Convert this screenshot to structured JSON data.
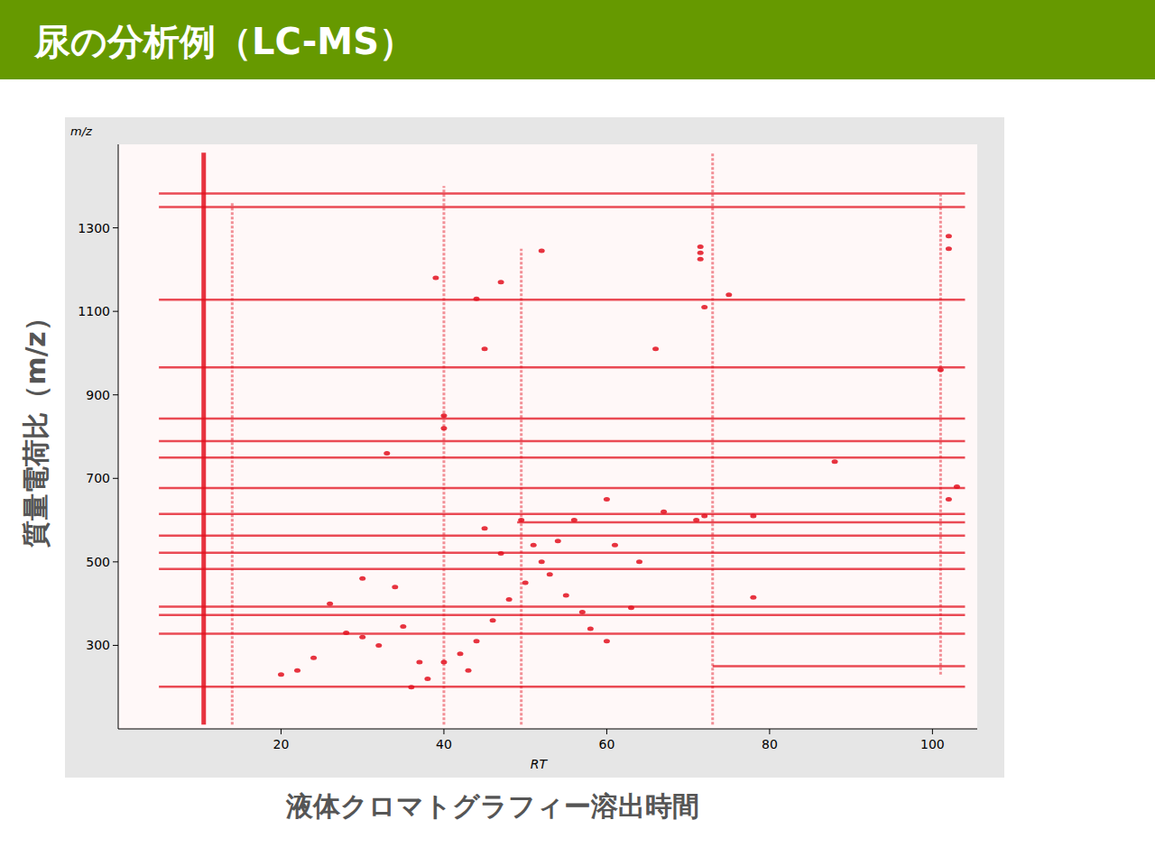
{
  "chart_data": {
    "type": "scatter",
    "title": "尿の分析例（LC-MS）",
    "x_label": "RT",
    "y_label": "m/z",
    "x_caption": "液体クロマトグラフィー溶出時間",
    "y_caption": "質量電荷比（m/z）",
    "color": "#e3101e",
    "xlim": [
      0,
      105.5
    ],
    "ylim": [
      100,
      1500
    ],
    "xticks": [
      20,
      40,
      60,
      80,
      100
    ],
    "yticks": [
      300,
      500,
      700,
      900,
      1100,
      1300
    ],
    "horizontal_traces": [
      {
        "mz": 1382,
        "rt_start": 5,
        "rt_end": 104
      },
      {
        "mz": 1350,
        "rt_start": 5,
        "rt_end": 104
      },
      {
        "mz": 1128,
        "rt_start": 5,
        "rt_end": 104
      },
      {
        "mz": 966,
        "rt_start": 5,
        "rt_end": 104
      },
      {
        "mz": 843,
        "rt_start": 5,
        "rt_end": 104
      },
      {
        "mz": 789,
        "rt_start": 5,
        "rt_end": 104
      },
      {
        "mz": 750,
        "rt_start": 5,
        "rt_end": 104
      },
      {
        "mz": 677,
        "rt_start": 5,
        "rt_end": 104
      },
      {
        "mz": 615,
        "rt_start": 5,
        "rt_end": 104
      },
      {
        "mz": 595,
        "rt_start": 49,
        "rt_end": 104
      },
      {
        "mz": 563,
        "rt_start": 5,
        "rt_end": 104
      },
      {
        "mz": 522,
        "rt_start": 5,
        "rt_end": 104
      },
      {
        "mz": 483,
        "rt_start": 5,
        "rt_end": 104
      },
      {
        "mz": 393,
        "rt_start": 5,
        "rt_end": 104
      },
      {
        "mz": 373,
        "rt_start": 5,
        "rt_end": 104
      },
      {
        "mz": 328,
        "rt_start": 5,
        "rt_end": 104
      },
      {
        "mz": 250,
        "rt_start": 73,
        "rt_end": 104
      },
      {
        "mz": 201,
        "rt_start": 5,
        "rt_end": 104
      }
    ],
    "vertical_traces": [
      {
        "rt": 10.5,
        "mz_start": 110,
        "mz_end": 1480
      },
      {
        "rt": 14,
        "mz_start": 110,
        "mz_end": 1360
      },
      {
        "rt": 40,
        "mz_start": 110,
        "mz_end": 1400
      },
      {
        "rt": 49.5,
        "mz_start": 110,
        "mz_end": 1250
      },
      {
        "rt": 73,
        "mz_start": 110,
        "mz_end": 1480
      },
      {
        "rt": 101,
        "mz_start": 230,
        "mz_end": 1380
      }
    ],
    "spots": {
      "x": [
        49.5,
        71.5,
        71.5,
        71.5,
        71,
        72,
        102,
        103,
        101,
        102,
        102,
        40,
        40,
        40,
        34,
        30,
        33,
        39,
        47,
        44,
        45,
        52,
        63,
        60,
        60,
        66,
        75,
        72,
        26,
        28,
        30,
        32,
        35,
        37,
        38,
        42,
        44,
        46,
        48,
        50,
        52,
        54,
        56,
        55,
        57,
        58,
        22,
        24,
        20,
        36,
        43,
        45,
        47,
        51,
        53,
        61,
        64,
        67,
        78,
        78,
        88
      ],
      "y": [
        600,
        1225,
        1240,
        1255,
        600,
        610,
        650,
        680,
        960,
        1250,
        1280,
        850,
        820,
        260,
        440,
        460,
        760,
        1180,
        1170,
        1130,
        1010,
        1245,
        390,
        650,
        310,
        1010,
        1140,
        1110,
        400,
        330,
        320,
        300,
        345,
        260,
        220,
        280,
        310,
        360,
        410,
        450,
        500,
        550,
        600,
        420,
        380,
        340,
        240,
        270,
        230,
        200,
        240,
        580,
        520,
        540,
        470,
        540,
        500,
        620,
        610,
        415,
        740
      ]
    }
  }
}
